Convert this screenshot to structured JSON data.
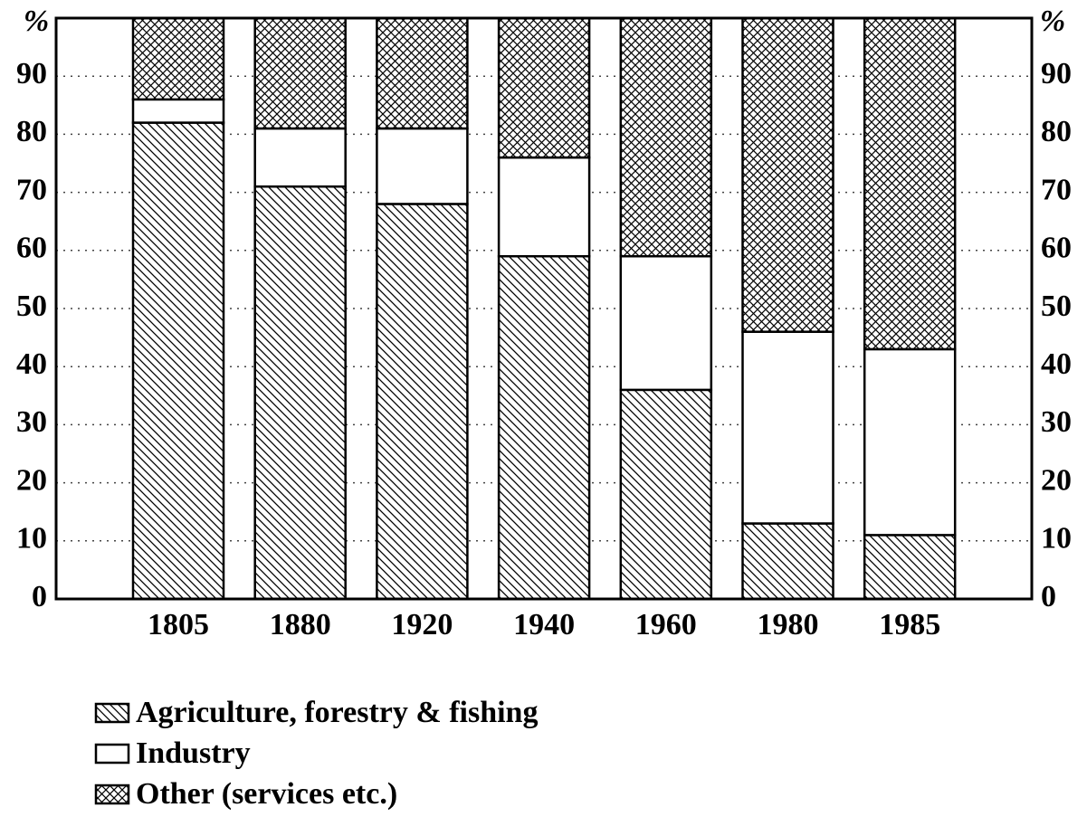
{
  "chart_data": {
    "type": "stacked_bar",
    "y_label": "%",
    "categories": [
      "1805",
      "1880",
      "1920",
      "1940",
      "1960",
      "1980",
      "1985"
    ],
    "series": [
      {
        "name": "Agriculture, forestry & fishing",
        "color": "#000000",
        "pattern": "hatch",
        "values": [
          82,
          71,
          68,
          59,
          36,
          13,
          11
        ]
      },
      {
        "name": "Industry",
        "color": "#000000",
        "pattern": "none",
        "values": [
          4,
          10,
          13,
          17,
          23,
          33,
          32
        ]
      },
      {
        "name": "Other (services etc.)",
        "color": "#000000",
        "pattern": "crosshatch",
        "values": [
          14,
          19,
          19,
          24,
          41,
          54,
          57
        ]
      }
    ],
    "ylim": [
      0,
      100
    ],
    "yticks": [
      0,
      10,
      20,
      30,
      40,
      50,
      60,
      70,
      80,
      90
    ],
    "grid": true
  }
}
